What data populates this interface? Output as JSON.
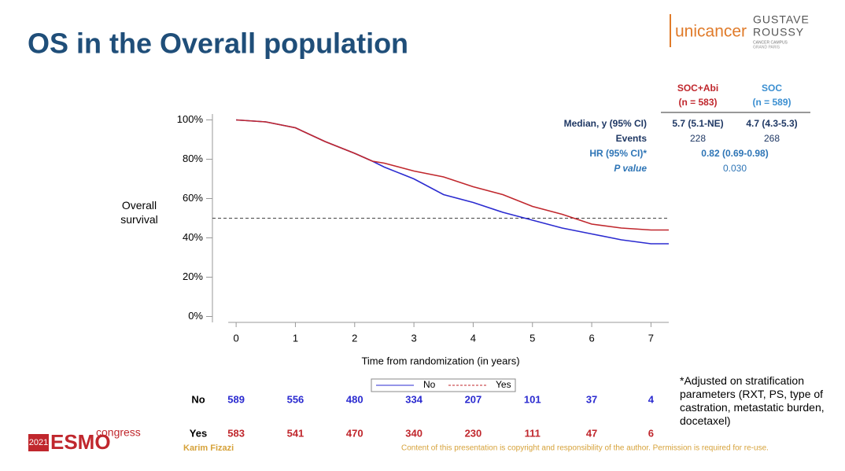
{
  "slide": {
    "title": "OS in the Overall population",
    "logos": {
      "unicancer": "unicancer",
      "gustave": "GUSTAVE",
      "roussy": "ROUSSY",
      "campus": "CANCER CAMPUS",
      "grand_paris": "GRAND PARIS",
      "year": "2021",
      "esmo": "ESMO",
      "congress": "congress"
    },
    "stats_table": {
      "headers": [
        {
          "name": "SOC+Abi",
          "n": "(n = 583)",
          "color": "#c0272d"
        },
        {
          "name": "SOC",
          "n": "(n = 589)",
          "color": "#3b8fd1"
        }
      ],
      "rows": [
        {
          "label": "Median, y (95% CI)",
          "cells": [
            "5.7 (5.1-NE)",
            "4.7 (4.3-5.3)"
          ]
        },
        {
          "label": "Events",
          "cells": [
            228,
            268
          ]
        },
        {
          "label": "HR (95% CI)*",
          "merged": "0.82 (0.69-0.98)"
        },
        {
          "label": "P value",
          "merged": "0.030"
        }
      ]
    },
    "footnote": "*Adjusted on stratification parameters (RXT, PS, type of castration, metastatic burden, docetaxel)",
    "author": "Karim Fizazi",
    "copyright": "Content of this presentation is copyright and responsibility of the author. Permission is required for re-use."
  },
  "chart_data": {
    "type": "line",
    "ylabel": "Overall survival",
    "xlabel": "Time from randomization (in years)",
    "x": [
      0,
      0.5,
      1,
      1.5,
      2,
      2.3,
      2.5,
      3,
      3.5,
      4,
      4.5,
      5,
      5.5,
      6,
      6.5,
      7,
      7.3
    ],
    "series": [
      {
        "name": "No",
        "color": "#2b2bd0",
        "legend_line": "solid",
        "values": [
          100,
          99,
          96,
          89,
          83,
          79,
          76,
          70,
          62,
          58,
          53,
          49,
          45,
          42,
          39,
          37,
          37
        ]
      },
      {
        "name": "Yes",
        "color": "#c0272d",
        "legend_line": "dashed",
        "values": [
          100,
          99,
          96,
          89,
          83,
          79,
          78,
          74,
          71,
          66,
          62,
          56,
          52,
          47,
          45,
          44,
          44
        ]
      }
    ],
    "reference_line": 50,
    "xlim": [
      -0.4,
      7.3
    ],
    "xticks": [
      0,
      1,
      2,
      3,
      4,
      5,
      6,
      7
    ],
    "ylim": [
      -3,
      103
    ],
    "yticks": [
      {
        "value": 0,
        "label": "0%"
      },
      {
        "value": 20,
        "label": "20%"
      },
      {
        "value": 40,
        "label": "40%"
      },
      {
        "value": 60,
        "label": "60%"
      },
      {
        "value": 80,
        "label": "80%"
      },
      {
        "value": 100,
        "label": "100%"
      }
    ],
    "risk_table": [
      {
        "label": "No",
        "color": "#2b2bd0",
        "values": [
          589,
          556,
          480,
          334,
          207,
          101,
          37,
          4
        ]
      },
      {
        "label": "Yes",
        "color": "#c0272d",
        "values": [
          583,
          541,
          470,
          340,
          230,
          111,
          47,
          6
        ]
      }
    ]
  }
}
